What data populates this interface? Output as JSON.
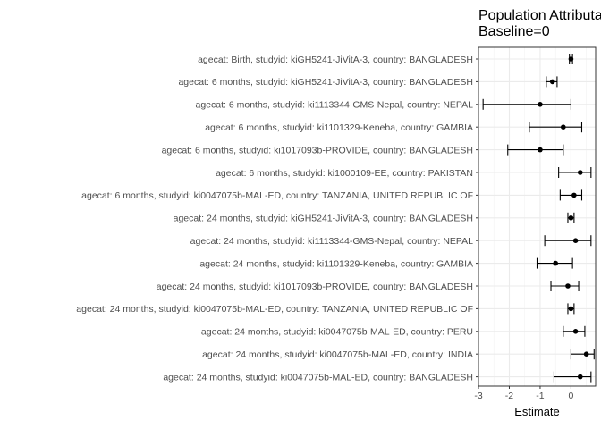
{
  "chart_data": {
    "type": "forest",
    "title": "Population Attributable",
    "subtitle": "Baseline=0",
    "xlabel": "Estimate",
    "ylabel": "",
    "xlim": [
      -3,
      0.8
    ],
    "xticks": [
      -3,
      -2,
      -1,
      0
    ],
    "grid": true,
    "rows": [
      {
        "label": "agecat: Birth, studyid: kiGH5241-JiVitA-3, country: BANGLADESH",
        "estimate": 0.0,
        "lower": -0.05,
        "upper": 0.05
      },
      {
        "label": "agecat: 6 months, studyid: kiGH5241-JiVitA-3, country: BANGLADESH",
        "estimate": -0.6,
        "lower": -0.8,
        "upper": -0.45
      },
      {
        "label": "agecat: 6 months, studyid: ki1113344-GMS-Nepal, country: NEPAL",
        "estimate": -1.0,
        "lower": -2.85,
        "upper": 0.0
      },
      {
        "label": "agecat: 6 months, studyid: ki1101329-Keneba, country: GAMBIA",
        "estimate": -0.25,
        "lower": -1.35,
        "upper": 0.35
      },
      {
        "label": "agecat: 6 months, studyid: ki1017093b-PROVIDE, country: BANGLADESH",
        "estimate": -1.0,
        "lower": -2.05,
        "upper": -0.25
      },
      {
        "label": "agecat: 6 months, studyid: ki1000109-EE, country: PAKISTAN",
        "estimate": 0.3,
        "lower": -0.4,
        "upper": 0.65
      },
      {
        "label": "agecat: 6 months, studyid: ki0047075b-MAL-ED, country: TANZANIA, UNITED REPUBLIC OF",
        "estimate": 0.1,
        "lower": -0.35,
        "upper": 0.35
      },
      {
        "label": "agecat: 24 months, studyid: kiGH5241-JiVitA-3, country: BANGLADESH",
        "estimate": 0.0,
        "lower": -0.1,
        "upper": 0.1
      },
      {
        "label": "agecat: 24 months, studyid: ki1113344-GMS-Nepal, country: NEPAL",
        "estimate": 0.15,
        "lower": -0.85,
        "upper": 0.65
      },
      {
        "label": "agecat: 24 months, studyid: ki1101329-Keneba, country: GAMBIA",
        "estimate": -0.5,
        "lower": -1.1,
        "upper": 0.05
      },
      {
        "label": "agecat: 24 months, studyid: ki1017093b-PROVIDE, country: BANGLADESH",
        "estimate": -0.1,
        "lower": -0.65,
        "upper": 0.25
      },
      {
        "label": "agecat: 24 months, studyid: ki0047075b-MAL-ED, country: TANZANIA, UNITED REPUBLIC OF",
        "estimate": 0.0,
        "lower": -0.1,
        "upper": 0.1
      },
      {
        "label": "agecat: 24 months, studyid: ki0047075b-MAL-ED, country: PERU",
        "estimate": 0.15,
        "lower": -0.25,
        "upper": 0.45
      },
      {
        "label": "agecat: 24 months, studyid: ki0047075b-MAL-ED, country: INDIA",
        "estimate": 0.5,
        "lower": 0.0,
        "upper": 0.75
      },
      {
        "label": "agecat: 24 months, studyid: ki0047075b-MAL-ED, country: BANGLADESH",
        "estimate": 0.3,
        "lower": -0.55,
        "upper": 0.65
      }
    ]
  }
}
